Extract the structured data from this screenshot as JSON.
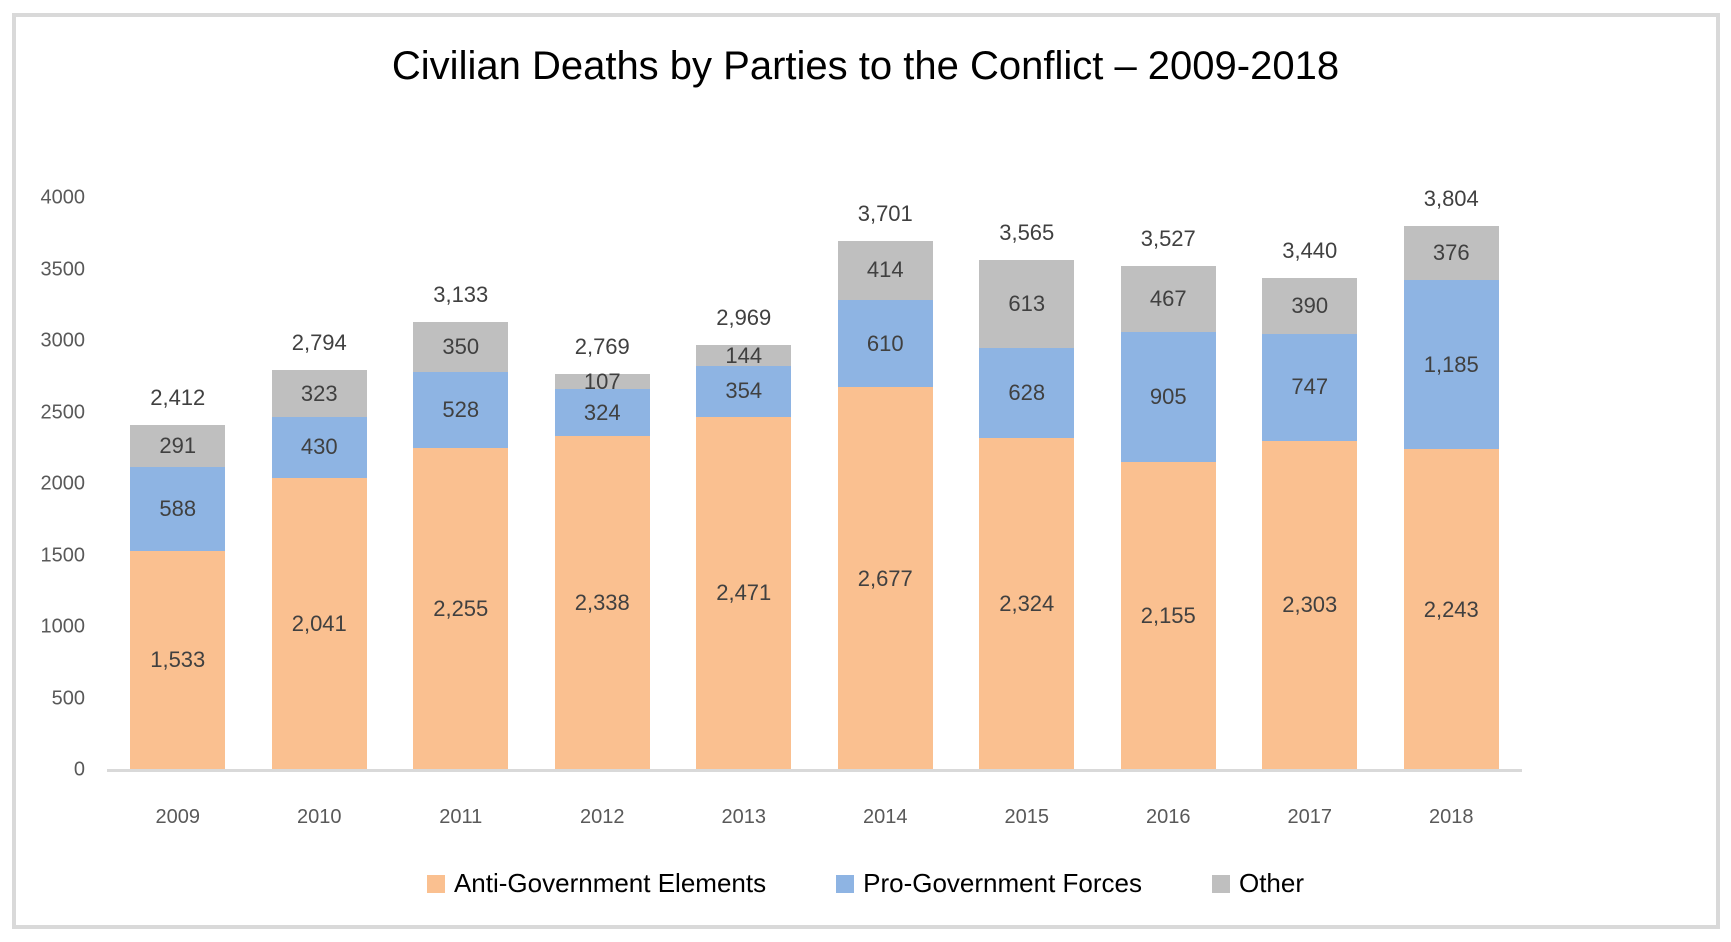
{
  "title": "Civilian Deaths by Parties to the Conflict – 2009-2018",
  "chart_data": {
    "type": "bar",
    "stacked": true,
    "title": "Civilian Deaths by Parties to the Conflict – 2009-2018",
    "categories": [
      "2009",
      "2010",
      "2011",
      "2012",
      "2013",
      "2014",
      "2015",
      "2016",
      "2017",
      "2018"
    ],
    "series": [
      {
        "name": "Anti-Government Elements",
        "color": "#FAC090",
        "values": [
          1533,
          2041,
          2255,
          2338,
          2471,
          2677,
          2324,
          2155,
          2303,
          2243
        ]
      },
      {
        "name": "Pro-Government Forces",
        "color": "#8EB4E3",
        "values": [
          588,
          430,
          528,
          324,
          354,
          610,
          628,
          905,
          747,
          1185
        ]
      },
      {
        "name": "Other",
        "color": "#BFBFBF",
        "values": [
          291,
          323,
          350,
          107,
          144,
          414,
          613,
          467,
          390,
          376
        ]
      }
    ],
    "totals": [
      2412,
      2794,
      3133,
      2769,
      2969,
      3701,
      3565,
      3527,
      3440,
      3804
    ],
    "xlabel": "",
    "ylabel": "",
    "ylim": [
      0,
      4000
    ],
    "yticks": [
      0,
      500,
      1000,
      1500,
      2000,
      2500,
      3000,
      3500,
      4000
    ],
    "grid": false,
    "legend_position": "bottom",
    "colors": {
      "axis_line": "#D9D9D9",
      "frame_border": "#D9D9D9",
      "tick_text": "#595959",
      "data_label_text": "#404040",
      "title_text": "#000000"
    }
  }
}
